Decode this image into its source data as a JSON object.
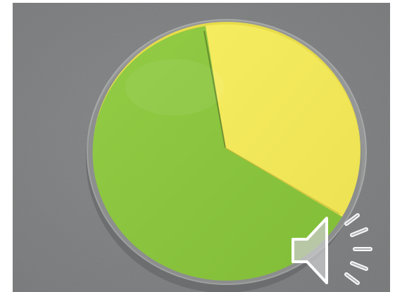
{
  "photo": {
    "subject": "paper-circle-fraction-model",
    "background_color": "#7d7f80",
    "sector_colors": {
      "green": "#8cc63e",
      "yellow": "#f2e85a"
    },
    "fractions_shown_as_area": {
      "green": 0.62,
      "yellow": 0.38
    }
  },
  "media": {
    "audio_icon": "speaker-icon"
  }
}
